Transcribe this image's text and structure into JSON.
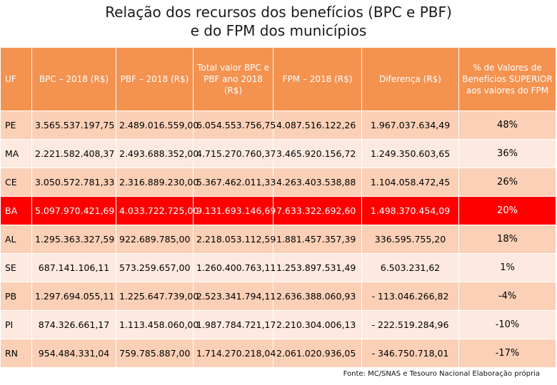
{
  "title_line1": "Relação dos recursos dos benefícios (BPC e PBF)",
  "title_line2": "e do FPM dos municípios",
  "headers": {
    "uf": "UF",
    "bpc": "BPC – 2018 (R$)",
    "pbf": "PBF – 2018 (R$)",
    "total": "Total valor BPC e PBF ano 2018 (R$)",
    "fpm": "FPM – 2018 (R$)",
    "diff": "Diferença (R$)",
    "pct": "% de Valores de Benefícios SUPERIOR aos valores do FPM"
  },
  "rows": [
    {
      "uf": "PE",
      "bpc": "3.565.537.197,75",
      "pbf": "2.489.016.559,00",
      "total": "6.054.553.756,75",
      "fpm": "4.087.516.122,26",
      "diff": "1.967.037.634,49",
      "pct": "48%"
    },
    {
      "uf": "MA",
      "bpc": "2.221.582.408,37",
      "pbf": "2.493.688.352,00",
      "total": "4.715.270.760,37",
      "fpm": "3.465.920.156,72",
      "diff": "1.249.350.603,65",
      "pct": "36%"
    },
    {
      "uf": "CE",
      "bpc": "3.050.572.781,33",
      "pbf": "2.316.889.230,00",
      "total": "5.367.462.011,33",
      "fpm": "4.263.403.538,88",
      "diff": "1.104.058.472,45",
      "pct": "26%"
    },
    {
      "uf": "BA",
      "bpc": "5.097.970.421,69",
      "pbf": "4.033.722.725,00",
      "total": "9.131.693.146,69",
      "fpm": "7.633.322.692,60",
      "diff": "1.498.370.454,09",
      "pct": "20%"
    },
    {
      "uf": "AL",
      "bpc": "1.295.363.327,59",
      "pbf": "922.689.785,00",
      "total": "2.218.053.112,59",
      "fpm": "1.881.457.357,39",
      "diff": "336.595.755,20",
      "pct": "18%"
    },
    {
      "uf": "SE",
      "bpc": "687.141.106,11",
      "pbf": "573.259.657,00",
      "total": "1.260.400.763,11",
      "fpm": "1.253.897.531,49",
      "diff": "6.503.231,62",
      "pct": "1%"
    },
    {
      "uf": "PB",
      "bpc": "1.297.694.055,11",
      "pbf": "1.225.647.739,00",
      "total": "2.523.341.794,11",
      "fpm": "2.636.388.060,93",
      "diff": "- 113.046.266,82",
      "pct": "-4%"
    },
    {
      "uf": "PI",
      "bpc": "874.326.661,17",
      "pbf": "1.113.458.060,00",
      "total": "1.987.784.721,17",
      "fpm": "2.210.304.006,13",
      "diff": "- 222.519.284,96",
      "pct": "-10%"
    },
    {
      "uf": "RN",
      "bpc": "954.484.331,04",
      "pbf": "759.785.887,00",
      "total": "1.714.270.218,04",
      "fpm": "2.061.020.936,05",
      "diff": "- 346.750.718,01",
      "pct": "-17%"
    }
  ],
  "source": "Fonte: MC/SNAS e Tesouro Nacional Elaboração própria",
  "colors": {
    "header": "#f4924f",
    "row_odd": "#fbd0b7",
    "row_even": "#fde9df",
    "highlight": "#ff0000"
  }
}
